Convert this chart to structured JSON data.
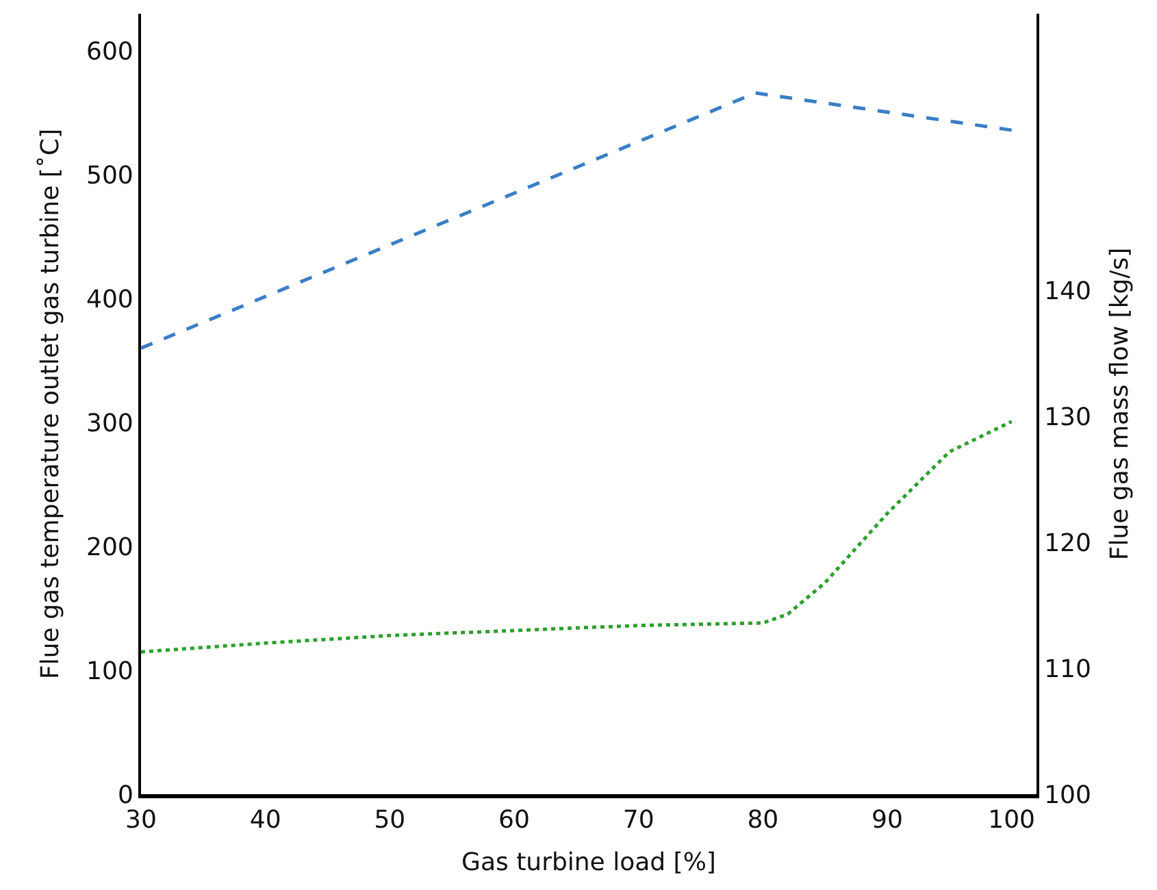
{
  "chart_data": {
    "type": "line",
    "xlabel": "Gas turbine load [%]",
    "ylabel": "Flue gas temperature outlet gas turbine [˚C]",
    "y2label": "Flue gas mass flow [kg/s]",
    "xlim": [
      30,
      102
    ],
    "xticks": [
      30,
      40,
      50,
      60,
      70,
      80,
      90,
      100
    ],
    "ylim": [
      0,
      630
    ],
    "yticks": [
      0,
      100,
      200,
      300,
      400,
      500,
      600
    ],
    "y2lim": [
      100,
      162
    ],
    "y2ticks": [
      100,
      110,
      120,
      130,
      140
    ],
    "marker": "none",
    "series": [
      {
        "color": "#3a7ec6",
        "line_style": "dashed",
        "x": [
          30,
          79.4,
          100
        ],
        "values": [
          360,
          566,
          536
        ]
      },
      {
        "color": "#2ca02c",
        "line_style": "dotted",
        "axis": "y2",
        "x": [
          30,
          40,
          50,
          60,
          70,
          80,
          82,
          85,
          88,
          90,
          95,
          100
        ],
        "values": [
          111.3,
          112,
          112.6,
          113,
          113.4,
          113.6,
          114.3,
          116.8,
          120.1,
          122.3,
          127.2,
          129.6
        ]
      }
    ]
  }
}
